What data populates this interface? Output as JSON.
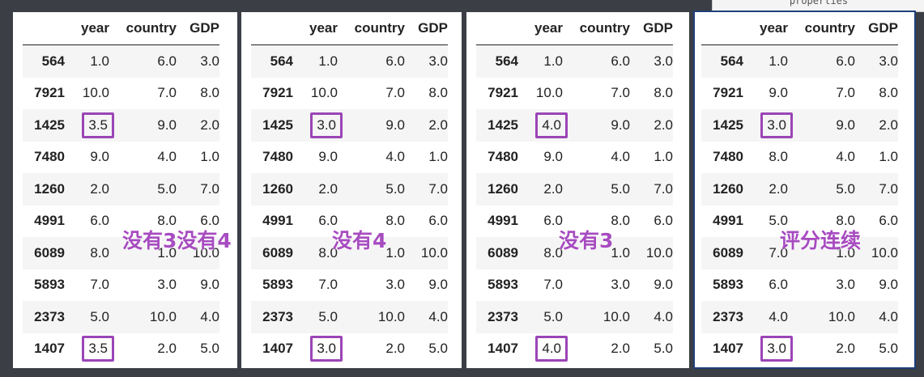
{
  "tooltip": {
    "text": "properties"
  },
  "columns": {
    "idx": "",
    "year": "year",
    "country": "country",
    "gdp": "GDP"
  },
  "panels": [
    {
      "annotation": "没有3没有4",
      "rows": [
        {
          "idx": "564",
          "year": "1.0",
          "country": "6.0",
          "gdp": "3.0",
          "hl": false
        },
        {
          "idx": "7921",
          "year": "10.0",
          "country": "7.0",
          "gdp": "8.0",
          "hl": false
        },
        {
          "idx": "1425",
          "year": "3.5",
          "country": "9.0",
          "gdp": "2.0",
          "hl": true
        },
        {
          "idx": "7480",
          "year": "9.0",
          "country": "4.0",
          "gdp": "1.0",
          "hl": false
        },
        {
          "idx": "1260",
          "year": "2.0",
          "country": "5.0",
          "gdp": "7.0",
          "hl": false
        },
        {
          "idx": "4991",
          "year": "6.0",
          "country": "8.0",
          "gdp": "6.0",
          "hl": false
        },
        {
          "idx": "6089",
          "year": "8.0",
          "country": "1.0",
          "gdp": "10.0",
          "hl": false
        },
        {
          "idx": "5893",
          "year": "7.0",
          "country": "3.0",
          "gdp": "9.0",
          "hl": false
        },
        {
          "idx": "2373",
          "year": "5.0",
          "country": "10.0",
          "gdp": "4.0",
          "hl": false
        },
        {
          "idx": "1407",
          "year": "3.5",
          "country": "2.0",
          "gdp": "5.0",
          "hl": true
        }
      ]
    },
    {
      "annotation": "没有4",
      "rows": [
        {
          "idx": "564",
          "year": "1.0",
          "country": "6.0",
          "gdp": "3.0",
          "hl": false
        },
        {
          "idx": "7921",
          "year": "10.0",
          "country": "7.0",
          "gdp": "8.0",
          "hl": false
        },
        {
          "idx": "1425",
          "year": "3.0",
          "country": "9.0",
          "gdp": "2.0",
          "hl": true
        },
        {
          "idx": "7480",
          "year": "9.0",
          "country": "4.0",
          "gdp": "1.0",
          "hl": false
        },
        {
          "idx": "1260",
          "year": "2.0",
          "country": "5.0",
          "gdp": "7.0",
          "hl": false
        },
        {
          "idx": "4991",
          "year": "6.0",
          "country": "8.0",
          "gdp": "6.0",
          "hl": false
        },
        {
          "idx": "6089",
          "year": "8.0",
          "country": "1.0",
          "gdp": "10.0",
          "hl": false
        },
        {
          "idx": "5893",
          "year": "7.0",
          "country": "3.0",
          "gdp": "9.0",
          "hl": false
        },
        {
          "idx": "2373",
          "year": "5.0",
          "country": "10.0",
          "gdp": "4.0",
          "hl": false
        },
        {
          "idx": "1407",
          "year": "3.0",
          "country": "2.0",
          "gdp": "5.0",
          "hl": true
        }
      ]
    },
    {
      "annotation": "没有3",
      "rows": [
        {
          "idx": "564",
          "year": "1.0",
          "country": "6.0",
          "gdp": "3.0",
          "hl": false
        },
        {
          "idx": "7921",
          "year": "10.0",
          "country": "7.0",
          "gdp": "8.0",
          "hl": false
        },
        {
          "idx": "1425",
          "year": "4.0",
          "country": "9.0",
          "gdp": "2.0",
          "hl": true
        },
        {
          "idx": "7480",
          "year": "9.0",
          "country": "4.0",
          "gdp": "1.0",
          "hl": false
        },
        {
          "idx": "1260",
          "year": "2.0",
          "country": "5.0",
          "gdp": "7.0",
          "hl": false
        },
        {
          "idx": "4991",
          "year": "6.0",
          "country": "8.0",
          "gdp": "6.0",
          "hl": false
        },
        {
          "idx": "6089",
          "year": "8.0",
          "country": "1.0",
          "gdp": "10.0",
          "hl": false
        },
        {
          "idx": "5893",
          "year": "7.0",
          "country": "3.0",
          "gdp": "9.0",
          "hl": false
        },
        {
          "idx": "2373",
          "year": "5.0",
          "country": "10.0",
          "gdp": "4.0",
          "hl": false
        },
        {
          "idx": "1407",
          "year": "4.0",
          "country": "2.0",
          "gdp": "5.0",
          "hl": true
        }
      ]
    },
    {
      "annotation": "评分连续",
      "rows": [
        {
          "idx": "564",
          "year": "1.0",
          "country": "6.0",
          "gdp": "3.0",
          "hl": false
        },
        {
          "idx": "7921",
          "year": "9.0",
          "country": "7.0",
          "gdp": "8.0",
          "hl": false
        },
        {
          "idx": "1425",
          "year": "3.0",
          "country": "9.0",
          "gdp": "2.0",
          "hl": true
        },
        {
          "idx": "7480",
          "year": "8.0",
          "country": "4.0",
          "gdp": "1.0",
          "hl": false
        },
        {
          "idx": "1260",
          "year": "2.0",
          "country": "5.0",
          "gdp": "7.0",
          "hl": false
        },
        {
          "idx": "4991",
          "year": "5.0",
          "country": "8.0",
          "gdp": "6.0",
          "hl": false
        },
        {
          "idx": "6089",
          "year": "7.0",
          "country": "1.0",
          "gdp": "10.0",
          "hl": false
        },
        {
          "idx": "5893",
          "year": "6.0",
          "country": "3.0",
          "gdp": "9.0",
          "hl": false
        },
        {
          "idx": "2373",
          "year": "4.0",
          "country": "10.0",
          "gdp": "4.0",
          "hl": false
        },
        {
          "idx": "1407",
          "year": "3.0",
          "country": "2.0",
          "gdp": "5.0",
          "hl": true
        }
      ]
    }
  ],
  "colors": {
    "highlight": "#9b45b6",
    "annotation": "#a74cc0",
    "selected_border": "#1f3f7a"
  }
}
